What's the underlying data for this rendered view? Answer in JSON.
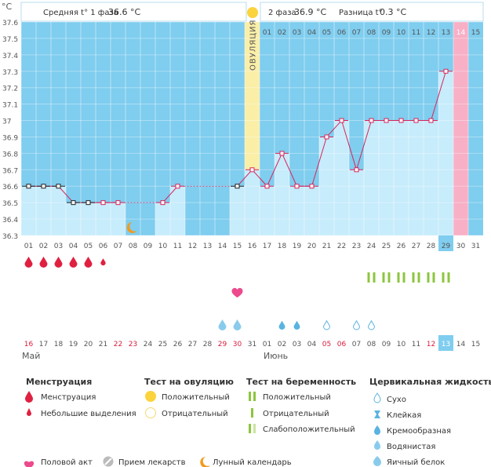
{
  "header": {
    "unit": "°C",
    "phase1_label": "Средняя t° 1 фаза",
    "phase1_value": "36.6 °C",
    "phase2_label": "2 фаза",
    "phase2_value": "36.9 °C",
    "diff_label": "Разница t°",
    "diff_value": "0.3 °C"
  },
  "ovulation_label": "ОВУЛЯЦИЯ",
  "chart_data": {
    "type": "line",
    "title": "",
    "ylabel": "°C",
    "ylim": [
      36.3,
      37.6
    ],
    "yticks": [
      "36.3",
      "36.4",
      "36.5",
      "36.6",
      "36.7",
      "36.8",
      "36.9",
      "37",
      "37.1",
      "37.2",
      "37.3",
      "37.4",
      "37.5",
      "37.6"
    ],
    "cycle_days": [
      "01",
      "02",
      "03",
      "04",
      "05",
      "06",
      "07",
      "08",
      "09",
      "10",
      "11",
      "12",
      "13",
      "14",
      "15",
      "16",
      "17",
      "18",
      "19",
      "20",
      "21",
      "22",
      "23",
      "24",
      "25",
      "26",
      "27",
      "28",
      "29",
      "30",
      "31"
    ],
    "phase2_days": [
      "01",
      "02",
      "03",
      "04",
      "05",
      "06",
      "07",
      "08",
      "09",
      "10",
      "11",
      "12",
      "13",
      "14",
      "15"
    ],
    "temperatures": [
      36.6,
      36.6,
      36.6,
      36.5,
      36.5,
      36.5,
      36.5,
      null,
      null,
      36.5,
      36.6,
      null,
      null,
      null,
      36.6,
      36.7,
      36.6,
      36.8,
      36.6,
      36.6,
      36.9,
      37.0,
      36.7,
      37.0,
      37.0,
      37.0,
      37.0,
      37.0,
      37.3,
      null,
      null
    ],
    "ovulation_day": 16,
    "highlight_day": 29,
    "period_day": 30,
    "moon_day": 8,
    "menstruation": [
      {
        "day": 1,
        "kind": "large"
      },
      {
        "day": 2,
        "kind": "large"
      },
      {
        "day": 3,
        "kind": "large"
      },
      {
        "day": 4,
        "kind": "large"
      },
      {
        "day": 5,
        "kind": "large"
      },
      {
        "day": 6,
        "kind": "small"
      }
    ],
    "pregnancy_tests": [
      24,
      25,
      26,
      27,
      28,
      29
    ],
    "intercourse_day": 15,
    "cervical_fluid": [
      {
        "day": 14,
        "kind": "egg-white"
      },
      {
        "day": 15,
        "kind": "egg-white"
      },
      {
        "day": 18,
        "kind": "watery"
      },
      {
        "day": 19,
        "kind": "watery"
      },
      {
        "day": 21,
        "kind": "dry"
      },
      {
        "day": 23,
        "kind": "dry"
      },
      {
        "day": 24,
        "kind": "dry"
      }
    ],
    "calendar_dates": [
      {
        "label": "16",
        "red": true
      },
      {
        "label": "17",
        "red": false
      },
      {
        "label": "18",
        "red": false
      },
      {
        "label": "19",
        "red": false
      },
      {
        "label": "20",
        "red": false
      },
      {
        "label": "21",
        "red": false
      },
      {
        "label": "22",
        "red": true
      },
      {
        "label": "23",
        "red": true
      },
      {
        "label": "24",
        "red": false
      },
      {
        "label": "25",
        "red": false
      },
      {
        "label": "26",
        "red": false
      },
      {
        "label": "27",
        "red": false
      },
      {
        "label": "28",
        "red": false
      },
      {
        "label": "29",
        "red": true
      },
      {
        "label": "30",
        "red": true
      },
      {
        "label": "31",
        "red": false
      },
      {
        "label": "01",
        "red": false
      },
      {
        "label": "02",
        "red": false
      },
      {
        "label": "03",
        "red": false
      },
      {
        "label": "04",
        "red": false
      },
      {
        "label": "05",
        "red": true
      },
      {
        "label": "06",
        "red": true
      },
      {
        "label": "07",
        "red": false
      },
      {
        "label": "08",
        "red": false
      },
      {
        "label": "09",
        "red": false
      },
      {
        "label": "10",
        "red": false
      },
      {
        "label": "11",
        "red": false
      },
      {
        "label": "12",
        "red": true
      },
      {
        "label": "13",
        "red": false
      },
      {
        "label": "14",
        "red": false
      },
      {
        "label": "15",
        "red": false
      }
    ],
    "month_start": "Май",
    "month_end": "Июнь"
  },
  "legend": {
    "menstruation": {
      "title": "Менструация",
      "items": [
        "Менструация",
        "Небольшие выделения"
      ]
    },
    "ovulation_test": {
      "title": "Тест на овуляцию",
      "items": [
        "Положительный",
        "Отрицательный"
      ]
    },
    "pregnancy_test": {
      "title": "Тест на беременность",
      "items": [
        "Положительный",
        "Отрицательный",
        "Слабоположительный"
      ]
    },
    "cervical": {
      "title": "Цервикальная жидкость",
      "items": [
        "Сухо",
        "Клейкая",
        "Кремообразная",
        "Водянистая",
        "Яичный белок"
      ]
    },
    "bottom": [
      "Половой акт",
      "Прием лекарств",
      "Лунный календарь"
    ]
  },
  "colors": {
    "bg_blue": "#7fcdef",
    "bar_blue": "#c7ecfc",
    "ovulation": "#fbeea7",
    "period": "#f8b0c6",
    "line": "#d8245a",
    "red": "#e02040",
    "green": "#8cc63e",
    "yellow": "#fbd33c",
    "moon": "#f29a1c"
  }
}
